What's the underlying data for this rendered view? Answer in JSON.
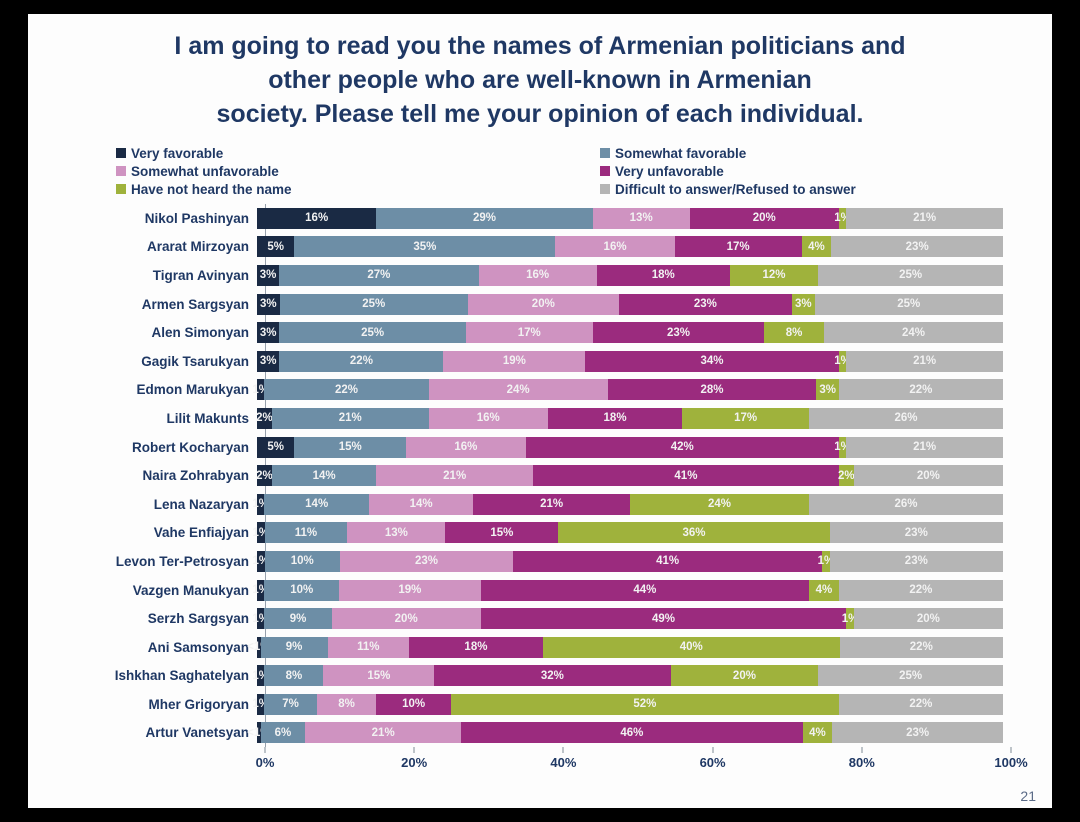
{
  "page_number": "21",
  "title": {
    "lines": [
      "I am going to read you the names of Armenian politicians and",
      "other people who are well-known in Armenian",
      "society. Please tell me your opinion of each individual."
    ]
  },
  "legend": {
    "left": [
      {
        "label": "Very favorable",
        "color": "#1a2a44"
      },
      {
        "label": "Somewhat unfavorable",
        "color": "#cf93c1"
      },
      {
        "label": "Have not heard the name",
        "color": "#9fb23c"
      }
    ],
    "right": [
      {
        "label": "Somewhat favorable",
        "color": "#6d8ea6"
      },
      {
        "label": "Very unfavorable",
        "color": "#9b2b7e"
      },
      {
        "label": "Difficult to answer/Refused to answer",
        "color": "#b5b5b5"
      }
    ]
  },
  "chart_data": {
    "type": "bar",
    "stacked": true,
    "orientation": "horizontal",
    "xlim": [
      0,
      100
    ],
    "x_ticks": [
      "0%",
      "20%",
      "40%",
      "60%",
      "80%",
      "100%"
    ],
    "legend_position": "top",
    "series_order": [
      "Very favorable",
      "Somewhat favorable",
      "Somewhat unfavorable",
      "Very unfavorable",
      "Have not heard the name",
      "Difficult to answer/Refused to answer"
    ],
    "colors": [
      "#1a2a44",
      "#6d8ea6",
      "#cf93c1",
      "#9b2b7e",
      "#9fb23c",
      "#b5b5b5"
    ],
    "rows": [
      {
        "name": "Nikol Pashinyan",
        "values": [
          16,
          29,
          13,
          20,
          1,
          21
        ],
        "labels": [
          "16%",
          "29%",
          "13%",
          "20%",
          "1%",
          "21%"
        ]
      },
      {
        "name": "Ararat Mirzoyan",
        "values": [
          5,
          35,
          16,
          17,
          4,
          23
        ],
        "labels": [
          "5%",
          "35%",
          "16%",
          "17%",
          "4%",
          "23%"
        ]
      },
      {
        "name": "Tigran Avinyan",
        "values": [
          3,
          27,
          16,
          18,
          12,
          25
        ],
        "labels": [
          "3%",
          "27%",
          "16%",
          "18%",
          "12%",
          "25%"
        ]
      },
      {
        "name": "Armen Sargsyan",
        "values": [
          3,
          25,
          20,
          23,
          3,
          25
        ],
        "labels": [
          "3%",
          "25%",
          "20%",
          "23%",
          "3%",
          "25%"
        ]
      },
      {
        "name": "Alen Simonyan",
        "values": [
          3,
          25,
          17,
          23,
          8,
          24
        ],
        "labels": [
          "3%",
          "25%",
          "17%",
          "23%",
          "8%",
          "24%"
        ]
      },
      {
        "name": "Gagik Tsarukyan",
        "values": [
          3,
          22,
          19,
          34,
          1,
          21
        ],
        "labels": [
          "3%",
          "22%",
          "19%",
          "34%",
          "1%",
          "21%"
        ]
      },
      {
        "name": "Edmon Marukyan",
        "values": [
          1,
          22,
          24,
          28,
          3,
          22
        ],
        "labels": [
          "1%",
          "22%",
          "24%",
          "28%",
          "3%",
          "22%"
        ]
      },
      {
        "name": "Lilit Makunts",
        "values": [
          2,
          21,
          16,
          18,
          17,
          26
        ],
        "labels": [
          "2%",
          "21%",
          "16%",
          "18%",
          "17%",
          "26%"
        ]
      },
      {
        "name": "Robert Kocharyan",
        "values": [
          5,
          15,
          16,
          42,
          1,
          21
        ],
        "labels": [
          "5%",
          "15%",
          "16%",
          "42%",
          "1%",
          "21%"
        ]
      },
      {
        "name": "Naira Zohrabyan",
        "values": [
          2,
          14,
          21,
          41,
          2,
          20
        ],
        "labels": [
          "2%",
          "14%",
          "21%",
          "41%",
          "2%",
          "20%"
        ]
      },
      {
        "name": "Lena Nazaryan",
        "values": [
          1,
          14,
          14,
          21,
          24,
          26
        ],
        "labels": [
          "1%",
          "14%",
          "14%",
          "21%",
          "24%",
          "26%"
        ]
      },
      {
        "name": "Vahe Enfiajyan",
        "values": [
          1,
          11,
          13,
          15,
          36,
          23
        ],
        "labels": [
          "1%",
          "11%",
          "13%",
          "15%",
          "36%",
          "23%"
        ]
      },
      {
        "name": "Levon Ter-Petrosyan",
        "values": [
          1,
          10,
          23,
          41,
          1,
          23
        ],
        "labels": [
          "1%",
          "10%",
          "23%",
          "41%",
          "1%",
          "23%"
        ]
      },
      {
        "name": "Vazgen Manukyan",
        "values": [
          1,
          10,
          19,
          44,
          4,
          22
        ],
        "labels": [
          "1%",
          "10%",
          "19%",
          "44%",
          "4%",
          "22%"
        ]
      },
      {
        "name": "Serzh Sargsyan",
        "values": [
          1,
          9,
          20,
          49,
          1,
          20
        ],
        "labels": [
          "1%",
          "9%",
          "20%",
          "49%",
          "1%",
          "20%"
        ]
      },
      {
        "name": "Ani Samsonyan",
        "values": [
          0.5,
          9,
          11,
          18,
          40,
          22
        ],
        "labels": [
          "<1%",
          "9%",
          "11%",
          "18%",
          "40%",
          "22%"
        ]
      },
      {
        "name": "Ishkhan Saghatelyan",
        "values": [
          1,
          8,
          15,
          32,
          20,
          25
        ],
        "labels": [
          "1%",
          "8%",
          "15%",
          "32%",
          "20%",
          "25%"
        ]
      },
      {
        "name": "Mher Grigoryan",
        "values": [
          1,
          7,
          8,
          10,
          52,
          22
        ],
        "labels": [
          "1%",
          "7%",
          "8%",
          "10%",
          "52%",
          "22%"
        ]
      },
      {
        "name": "Artur Vanetsyan",
        "values": [
          0.5,
          6,
          21,
          46,
          4,
          23
        ],
        "labels": [
          "<1%",
          "6%",
          "21%",
          "46%",
          "4%",
          "23%"
        ]
      }
    ]
  }
}
